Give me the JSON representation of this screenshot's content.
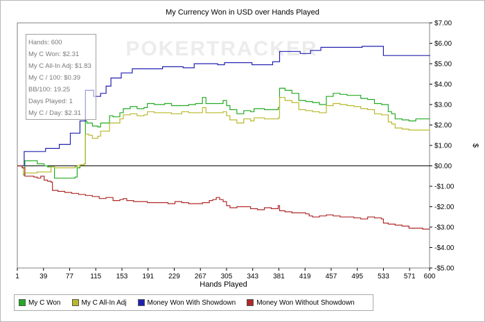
{
  "chart_data": {
    "type": "line",
    "title": "My Currency Won in USD over Hands Played",
    "xlabel": "Hands Played",
    "ylabel": "$",
    "xlim": [
      1,
      600
    ],
    "ylim": [
      -5.0,
      7.0
    ],
    "x_ticks": [
      1,
      39,
      77,
      115,
      153,
      191,
      229,
      267,
      305,
      343,
      381,
      419,
      457,
      495,
      533,
      571,
      600
    ],
    "y_ticks": [
      {
        "value": 7,
        "label": "$7.00"
      },
      {
        "value": 6,
        "label": "$6.00"
      },
      {
        "value": 5,
        "label": "$5.00"
      },
      {
        "value": 4,
        "label": "$4.00"
      },
      {
        "value": 3,
        "label": "$3.00"
      },
      {
        "value": 2,
        "label": "$2.00"
      },
      {
        "value": 1,
        "label": "$1.00"
      },
      {
        "value": 0,
        "label": "$0.00"
      },
      {
        "value": -1,
        "label": "-$1.00"
      },
      {
        "value": -2,
        "label": "-$2.00"
      },
      {
        "value": -3,
        "label": "-$3.00"
      },
      {
        "value": -4,
        "label": "-$4.00"
      },
      {
        "value": -5,
        "label": "-$5.00"
      }
    ],
    "watermark": "POKERTRACKER",
    "grid": false,
    "legend_position": "bottom-left",
    "series": [
      {
        "name": "My C Won",
        "color": "#22aa22",
        "points": [
          [
            1,
            0
          ],
          [
            8,
            -0.1
          ],
          [
            10,
            -0.45
          ],
          [
            12,
            0.25
          ],
          [
            30,
            0.1
          ],
          [
            40,
            0.0
          ],
          [
            45,
            -0.05
          ],
          [
            50,
            -0.05
          ],
          [
            55,
            -0.6
          ],
          [
            70,
            -0.6
          ],
          [
            85,
            -0.55
          ],
          [
            88,
            -0.1
          ],
          [
            92,
            0.05
          ],
          [
            98,
            0.1
          ],
          [
            100,
            2.2
          ],
          [
            102,
            2.1
          ],
          [
            110,
            1.95
          ],
          [
            118,
            1.9
          ],
          [
            122,
            2.1
          ],
          [
            130,
            2.1
          ],
          [
            135,
            2.45
          ],
          [
            140,
            2.4
          ],
          [
            150,
            2.6
          ],
          [
            155,
            2.8
          ],
          [
            165,
            2.9
          ],
          [
            175,
            2.8
          ],
          [
            185,
            2.85
          ],
          [
            190,
            3.05
          ],
          [
            200,
            3.0
          ],
          [
            215,
            3.05
          ],
          [
            225,
            2.95
          ],
          [
            240,
            2.95
          ],
          [
            250,
            3.0
          ],
          [
            260,
            3.05
          ],
          [
            270,
            3.35
          ],
          [
            275,
            3.05
          ],
          [
            290,
            3.05
          ],
          [
            300,
            3.2
          ],
          [
            305,
            2.95
          ],
          [
            310,
            2.75
          ],
          [
            320,
            2.55
          ],
          [
            330,
            2.7
          ],
          [
            340,
            2.65
          ],
          [
            345,
            2.8
          ],
          [
            360,
            2.75
          ],
          [
            370,
            2.75
          ],
          [
            380,
            2.85
          ],
          [
            382,
            3.8
          ],
          [
            390,
            3.7
          ],
          [
            400,
            3.55
          ],
          [
            410,
            3.2
          ],
          [
            420,
            3.15
          ],
          [
            430,
            3.1
          ],
          [
            440,
            3.0
          ],
          [
            450,
            3.4
          ],
          [
            460,
            3.55
          ],
          [
            470,
            3.5
          ],
          [
            480,
            3.45
          ],
          [
            490,
            3.45
          ],
          [
            500,
            3.3
          ],
          [
            510,
            3.25
          ],
          [
            520,
            3.05
          ],
          [
            530,
            3.0
          ],
          [
            540,
            2.65
          ],
          [
            545,
            2.55
          ],
          [
            550,
            2.3
          ],
          [
            560,
            2.25
          ],
          [
            570,
            2.2
          ],
          [
            580,
            2.3
          ],
          [
            600,
            2.31
          ]
        ]
      },
      {
        "name": "My C All-In Adj",
        "color": "#b8b82a",
        "points": [
          [
            1,
            0
          ],
          [
            8,
            -0.1
          ],
          [
            10,
            -0.4
          ],
          [
            12,
            -0.35
          ],
          [
            30,
            -0.3
          ],
          [
            50,
            -0.05
          ],
          [
            55,
            -0.1
          ],
          [
            70,
            -0.1
          ],
          [
            85,
            -0.05
          ],
          [
            88,
            0.0
          ],
          [
            92,
            0.05
          ],
          [
            98,
            0.1
          ],
          [
            100,
            1.55
          ],
          [
            105,
            1.5
          ],
          [
            110,
            1.35
          ],
          [
            118,
            1.45
          ],
          [
            122,
            1.7
          ],
          [
            130,
            1.7
          ],
          [
            135,
            2.1
          ],
          [
            140,
            2.1
          ],
          [
            150,
            2.3
          ],
          [
            155,
            2.5
          ],
          [
            165,
            2.55
          ],
          [
            175,
            2.45
          ],
          [
            185,
            2.5
          ],
          [
            190,
            2.65
          ],
          [
            200,
            2.6
          ],
          [
            215,
            2.6
          ],
          [
            225,
            2.55
          ],
          [
            240,
            2.65
          ],
          [
            250,
            2.6
          ],
          [
            260,
            2.6
          ],
          [
            270,
            2.85
          ],
          [
            275,
            2.6
          ],
          [
            290,
            2.6
          ],
          [
            300,
            2.65
          ],
          [
            305,
            2.45
          ],
          [
            310,
            2.25
          ],
          [
            320,
            2.1
          ],
          [
            330,
            2.3
          ],
          [
            340,
            2.2
          ],
          [
            345,
            2.35
          ],
          [
            360,
            2.3
          ],
          [
            370,
            2.3
          ],
          [
            380,
            2.35
          ],
          [
            382,
            3.35
          ],
          [
            390,
            3.2
          ],
          [
            400,
            3.1
          ],
          [
            410,
            2.75
          ],
          [
            420,
            2.7
          ],
          [
            430,
            2.65
          ],
          [
            440,
            2.6
          ],
          [
            450,
            2.95
          ],
          [
            460,
            3.05
          ],
          [
            470,
            3.0
          ],
          [
            480,
            2.95
          ],
          [
            490,
            2.9
          ],
          [
            500,
            2.8
          ],
          [
            510,
            2.75
          ],
          [
            520,
            2.55
          ],
          [
            530,
            2.5
          ],
          [
            540,
            2.15
          ],
          [
            545,
            2.05
          ],
          [
            550,
            1.85
          ],
          [
            560,
            1.8
          ],
          [
            570,
            1.75
          ],
          [
            580,
            1.75
          ],
          [
            600,
            1.83
          ]
        ]
      },
      {
        "name": "Money Won With Showdown",
        "color": "#2020b0",
        "points": [
          [
            1,
            0
          ],
          [
            10,
            0
          ],
          [
            11,
            0.7
          ],
          [
            40,
            0.7
          ],
          [
            42,
            0.85
          ],
          [
            60,
            0.85
          ],
          [
            62,
            1.05
          ],
          [
            75,
            1.05
          ],
          [
            78,
            1.6
          ],
          [
            90,
            1.6
          ],
          [
            92,
            2.2
          ],
          [
            98,
            2.2
          ],
          [
            100,
            3.7
          ],
          [
            110,
            3.7
          ],
          [
            112,
            3.4
          ],
          [
            120,
            3.4
          ],
          [
            122,
            3.55
          ],
          [
            128,
            3.55
          ],
          [
            130,
            3.9
          ],
          [
            135,
            3.9
          ],
          [
            137,
            4.3
          ],
          [
            150,
            4.3
          ],
          [
            152,
            4.55
          ],
          [
            165,
            4.55
          ],
          [
            168,
            4.75
          ],
          [
            210,
            4.75
          ],
          [
            212,
            4.85
          ],
          [
            240,
            4.85
          ],
          [
            242,
            4.8
          ],
          [
            255,
            4.8
          ],
          [
            258,
            5.0
          ],
          [
            290,
            5.0
          ],
          [
            292,
            4.95
          ],
          [
            300,
            4.95
          ],
          [
            302,
            5.05
          ],
          [
            340,
            5.05
          ],
          [
            342,
            4.95
          ],
          [
            370,
            4.95
          ],
          [
            372,
            5.1
          ],
          [
            380,
            5.1
          ],
          [
            382,
            5.6
          ],
          [
            410,
            5.6
          ],
          [
            412,
            5.5
          ],
          [
            425,
            5.5
          ],
          [
            427,
            5.65
          ],
          [
            440,
            5.65
          ],
          [
            442,
            5.8
          ],
          [
            500,
            5.8
          ],
          [
            502,
            5.85
          ],
          [
            530,
            5.85
          ],
          [
            533,
            5.4
          ],
          [
            600,
            5.37
          ]
        ]
      },
      {
        "name": "Money Won Without Showdown",
        "color": "#b02828",
        "points": [
          [
            1,
            0
          ],
          [
            8,
            -0.1
          ],
          [
            12,
            -0.5
          ],
          [
            25,
            -0.55
          ],
          [
            30,
            -0.6
          ],
          [
            35,
            -0.5
          ],
          [
            40,
            -0.7
          ],
          [
            45,
            -0.75
          ],
          [
            50,
            -0.8
          ],
          [
            52,
            -1.2
          ],
          [
            60,
            -1.25
          ],
          [
            70,
            -1.3
          ],
          [
            80,
            -1.35
          ],
          [
            90,
            -1.4
          ],
          [
            100,
            -1.45
          ],
          [
            110,
            -1.5
          ],
          [
            115,
            -1.5
          ],
          [
            120,
            -1.6
          ],
          [
            130,
            -1.55
          ],
          [
            140,
            -1.7
          ],
          [
            150,
            -1.65
          ],
          [
            155,
            -1.6
          ],
          [
            160,
            -1.7
          ],
          [
            170,
            -1.75
          ],
          [
            180,
            -1.75
          ],
          [
            190,
            -1.8
          ],
          [
            200,
            -1.8
          ],
          [
            210,
            -1.8
          ],
          [
            220,
            -1.85
          ],
          [
            230,
            -1.75
          ],
          [
            240,
            -1.8
          ],
          [
            250,
            -1.85
          ],
          [
            260,
            -1.85
          ],
          [
            270,
            -1.8
          ],
          [
            280,
            -1.7
          ],
          [
            285,
            -1.65
          ],
          [
            290,
            -1.55
          ],
          [
            295,
            -1.65
          ],
          [
            300,
            -1.75
          ],
          [
            305,
            -1.95
          ],
          [
            310,
            -2.05
          ],
          [
            320,
            -2.0
          ],
          [
            330,
            -2.0
          ],
          [
            340,
            -2.1
          ],
          [
            350,
            -2.15
          ],
          [
            360,
            -2.05
          ],
          [
            370,
            -2.1
          ],
          [
            380,
            -1.95
          ],
          [
            382,
            -2.2
          ],
          [
            390,
            -2.25
          ],
          [
            400,
            -2.3
          ],
          [
            410,
            -2.3
          ],
          [
            420,
            -2.35
          ],
          [
            425,
            -2.45
          ],
          [
            430,
            -2.5
          ],
          [
            440,
            -2.45
          ],
          [
            450,
            -2.4
          ],
          [
            460,
            -2.45
          ],
          [
            470,
            -2.5
          ],
          [
            480,
            -2.5
          ],
          [
            490,
            -2.55
          ],
          [
            500,
            -2.6
          ],
          [
            510,
            -2.5
          ],
          [
            520,
            -2.55
          ],
          [
            530,
            -2.6
          ],
          [
            533,
            -2.8
          ],
          [
            540,
            -2.85
          ],
          [
            550,
            -2.9
          ],
          [
            560,
            -2.95
          ],
          [
            570,
            -3.05
          ],
          [
            580,
            -3.05
          ],
          [
            590,
            -3.1
          ],
          [
            600,
            -3.08
          ]
        ]
      }
    ]
  },
  "info_box": [
    "Hands: 600",
    "My C Won: $2.31",
    "My C All-In Adj: $1.83",
    "My C / 100: $0.39",
    "BB/100: 19.25",
    "Days Played: 1",
    "My C / Day: $2.31"
  ]
}
